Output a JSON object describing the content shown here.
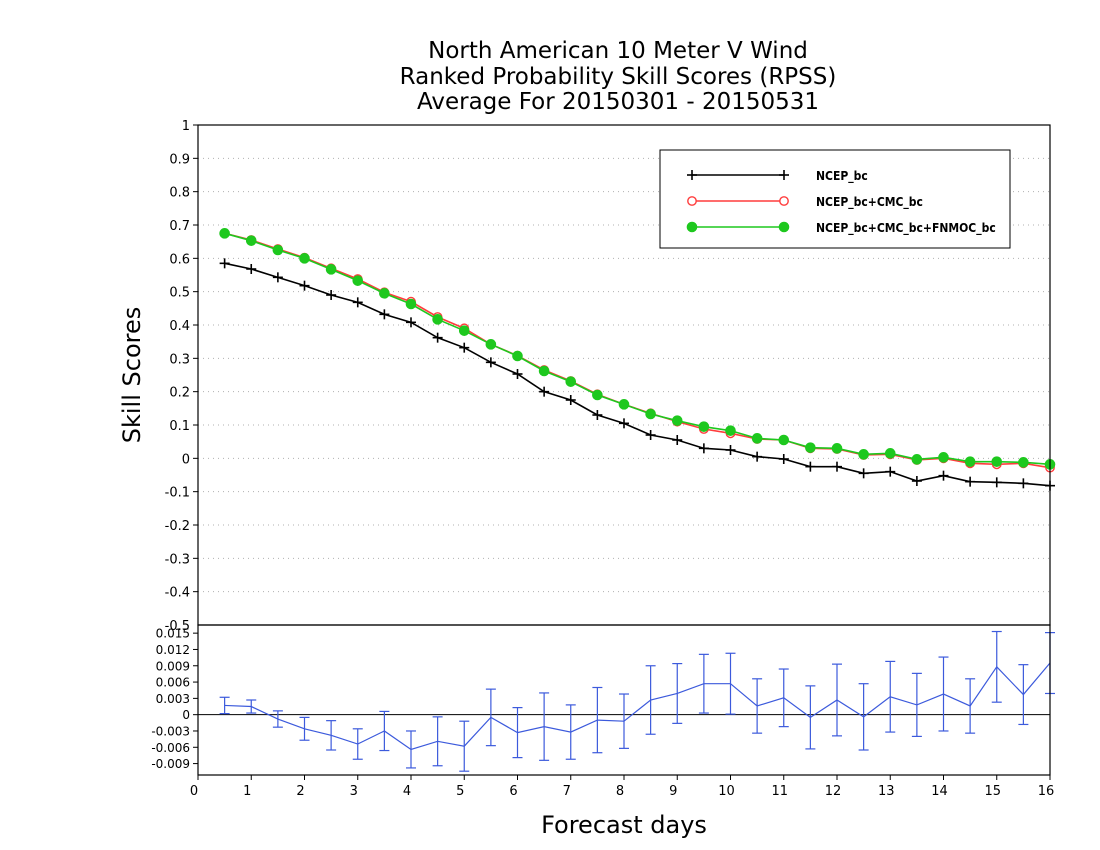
{
  "chart_data": [
    {
      "type": "line",
      "title": [
        "North American 10 Meter V Wind",
        "Ranked Probability Skill Scores (RPSS)",
        "Average For 20150301 - 20150531"
      ],
      "xlabel": "Forecast days",
      "ylabel": "Skill Scores",
      "xlim": [
        0,
        16
      ],
      "ylim": [
        -0.5,
        1
      ],
      "y_ticks": [
        -0.4,
        -0.3,
        -0.2,
        -0.1,
        0,
        0.1,
        0.2,
        0.3,
        0.4,
        0.5,
        0.6,
        0.7,
        0.8,
        0.9,
        1
      ],
      "y_tick_labels": [
        "-0.4",
        "-0.3",
        "-0.2",
        "-0.1",
        "0",
        "0.1",
        "0.2",
        "0.3",
        "0.4",
        "0.5",
        "0.6",
        "0.7",
        "0.8",
        "0.9",
        "1"
      ],
      "x_ticks": [
        0,
        1,
        2,
        3,
        4,
        5,
        6,
        7,
        8,
        9,
        10,
        11,
        12,
        13,
        14,
        15,
        16
      ],
      "grid": true,
      "legend_position": "top-right",
      "x": [
        0.5,
        1,
        1.5,
        2,
        2.5,
        3,
        3.5,
        4,
        4.5,
        5,
        5.5,
        6,
        6.5,
        7,
        7.5,
        8,
        8.5,
        9,
        9.5,
        10,
        10.5,
        11,
        11.5,
        12,
        12.5,
        13,
        13.5,
        14,
        14.5,
        15,
        15.5,
        16
      ],
      "series": [
        {
          "name": "NCEP_bc",
          "color": "#000000",
          "marker": "plus",
          "values": [
            0.585,
            0.568,
            0.543,
            0.518,
            0.49,
            0.468,
            0.432,
            0.408,
            0.362,
            0.332,
            0.288,
            0.253,
            0.2,
            0.175,
            0.13,
            0.105,
            0.07,
            0.055,
            0.03,
            0.025,
            0.005,
            -0.002,
            -0.025,
            -0.025,
            -0.045,
            -0.04,
            -0.068,
            -0.052,
            -0.07,
            -0.072,
            -0.075,
            -0.082
          ]
        },
        {
          "name": "NCEP_bc+CMC_bc",
          "color": "#ff3c3c",
          "marker": "open-circle",
          "values": [
            0.675,
            0.655,
            0.628,
            0.602,
            0.57,
            0.538,
            0.498,
            0.47,
            0.424,
            0.39,
            0.342,
            0.308,
            0.265,
            0.232,
            0.192,
            0.162,
            0.135,
            0.11,
            0.088,
            0.075,
            0.058,
            0.055,
            0.03,
            0.028,
            0.01,
            0.012,
            -0.005,
            0.0,
            -0.015,
            -0.018,
            -0.015,
            -0.028
          ]
        },
        {
          "name": "NCEP_bc+CMC_bc+FNMOC_bc",
          "color": "#1ec81e",
          "marker": "filled-circle",
          "values": [
            0.675,
            0.653,
            0.625,
            0.6,
            0.567,
            0.533,
            0.495,
            0.463,
            0.417,
            0.383,
            0.342,
            0.307,
            0.262,
            0.23,
            0.19,
            0.162,
            0.133,
            0.113,
            0.095,
            0.083,
            0.06,
            0.055,
            0.032,
            0.03,
            0.012,
            0.015,
            -0.003,
            0.003,
            -0.01,
            -0.01,
            -0.012,
            -0.018
          ]
        }
      ]
    },
    {
      "type": "line",
      "ylim": [
        -0.0111,
        0.0165
      ],
      "xlim": [
        0,
        16
      ],
      "y_ticks": [
        -0.009,
        -0.006,
        -0.003,
        0,
        0.003,
        0.006,
        0.009,
        0.012,
        0.015
      ],
      "y_tick_labels": [
        "-0.009",
        "-0.006",
        "-0.003",
        "0",
        "0.003",
        "0.006",
        "0.009",
        "0.012",
        "0.015"
      ],
      "grid": false,
      "color": "#3c5adc",
      "x": [
        0.5,
        1,
        1.5,
        2,
        2.5,
        3,
        3.5,
        4,
        4.5,
        5,
        5.5,
        6,
        6.5,
        7,
        7.5,
        8,
        8.5,
        9,
        9.5,
        10,
        10.5,
        11,
        11.5,
        12,
        12.5,
        13,
        13.5,
        14,
        14.5,
        15,
        15.5,
        16
      ],
      "values": [
        0.0017,
        0.0015,
        -0.0008,
        -0.0026,
        -0.0038,
        -0.0054,
        -0.003,
        -0.0064,
        -0.0049,
        -0.0058,
        -0.0005,
        -0.0033,
        -0.0022,
        -0.0032,
        -0.001,
        -0.0012,
        0.0027,
        0.0039,
        0.0057,
        0.0057,
        0.0016,
        0.0031,
        -0.0005,
        0.0027,
        -0.0004,
        0.0033,
        0.0018,
        0.0038,
        0.0016,
        0.0088,
        0.0037,
        0.0095
      ],
      "errors": [
        0.0015,
        0.0012,
        0.0015,
        0.0021,
        0.0027,
        0.0028,
        0.0036,
        0.0034,
        0.0045,
        0.0046,
        0.0052,
        0.0046,
        0.0062,
        0.005,
        0.006,
        0.005,
        0.0063,
        0.0055,
        0.0054,
        0.0056,
        0.005,
        0.0053,
        0.0058,
        0.0066,
        0.0061,
        0.0065,
        0.0058,
        0.0068,
        0.005,
        0.0065,
        0.0055,
        0.0056
      ]
    }
  ]
}
